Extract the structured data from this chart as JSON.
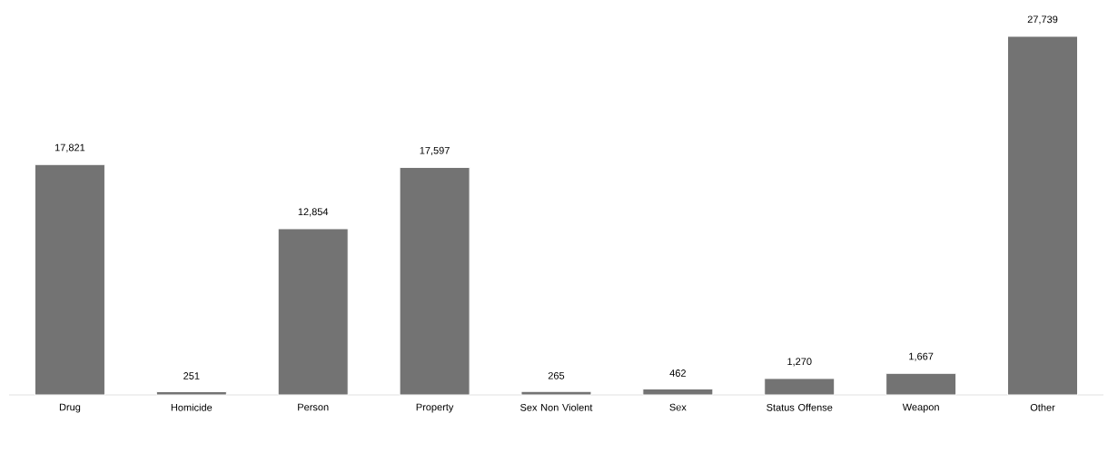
{
  "chart_data": {
    "type": "bar",
    "categories": [
      "Drug",
      "Homicide",
      "Person",
      "Property",
      "Sex Non Violent",
      "Sex",
      "Status Offense",
      "Weapon",
      "Other"
    ],
    "values": [
      17821,
      251,
      12854,
      17597,
      265,
      462,
      1270,
      1667,
      27739
    ],
    "color": "#737373",
    "value_labels": [
      "17,821",
      "251",
      "12,854",
      "17,597",
      "265",
      "462",
      "1,270",
      "1,667",
      "27,739"
    ]
  }
}
